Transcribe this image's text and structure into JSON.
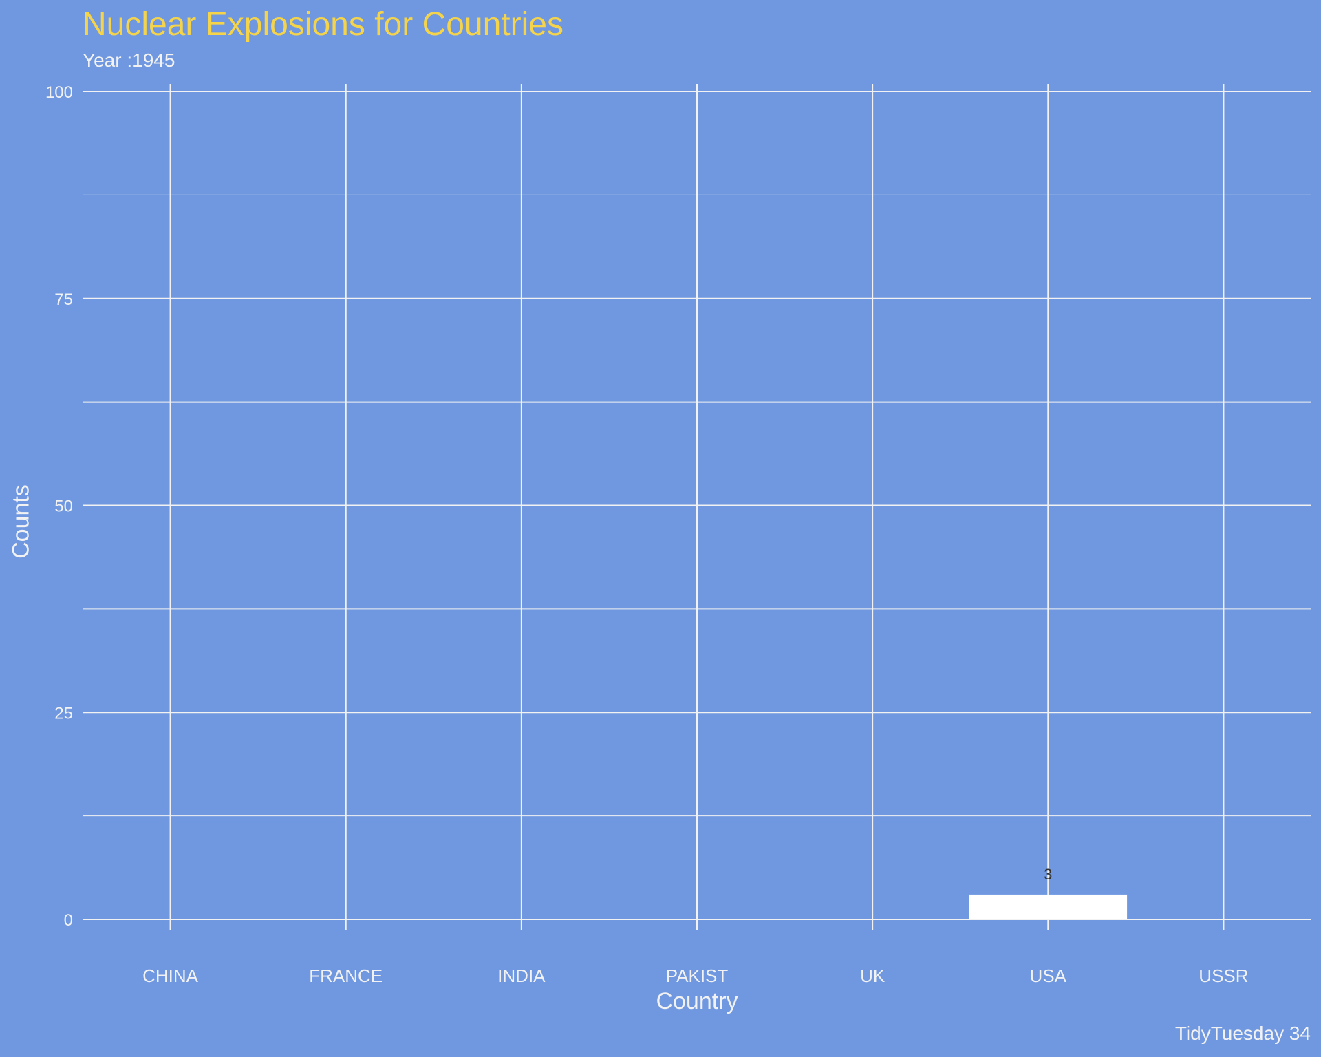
{
  "chart_data": {
    "type": "bar",
    "title": "Nuclear Explosions for Countries",
    "subtitle": "Year :1945",
    "xlabel": "Country",
    "ylabel": "Counts",
    "caption": "TidyTuesday 34",
    "categories": [
      "CHINA",
      "FRANCE",
      "INDIA",
      "PAKIST",
      "UK",
      "USA",
      "USSR"
    ],
    "values": [
      0,
      0,
      0,
      0,
      0,
      3,
      0
    ],
    "data_labels": [
      "",
      "",
      "",
      "",
      "",
      "3",
      ""
    ],
    "ylim": [
      0,
      100
    ],
    "yticks": [
      0,
      25,
      50,
      75,
      100
    ],
    "grid": true,
    "legend": "none",
    "colors": {
      "background": "#7098e0",
      "bar": "#ffffff",
      "grid": "#f2f2f2",
      "title": "#f5d44a",
      "text": "#f2f2f2"
    }
  }
}
